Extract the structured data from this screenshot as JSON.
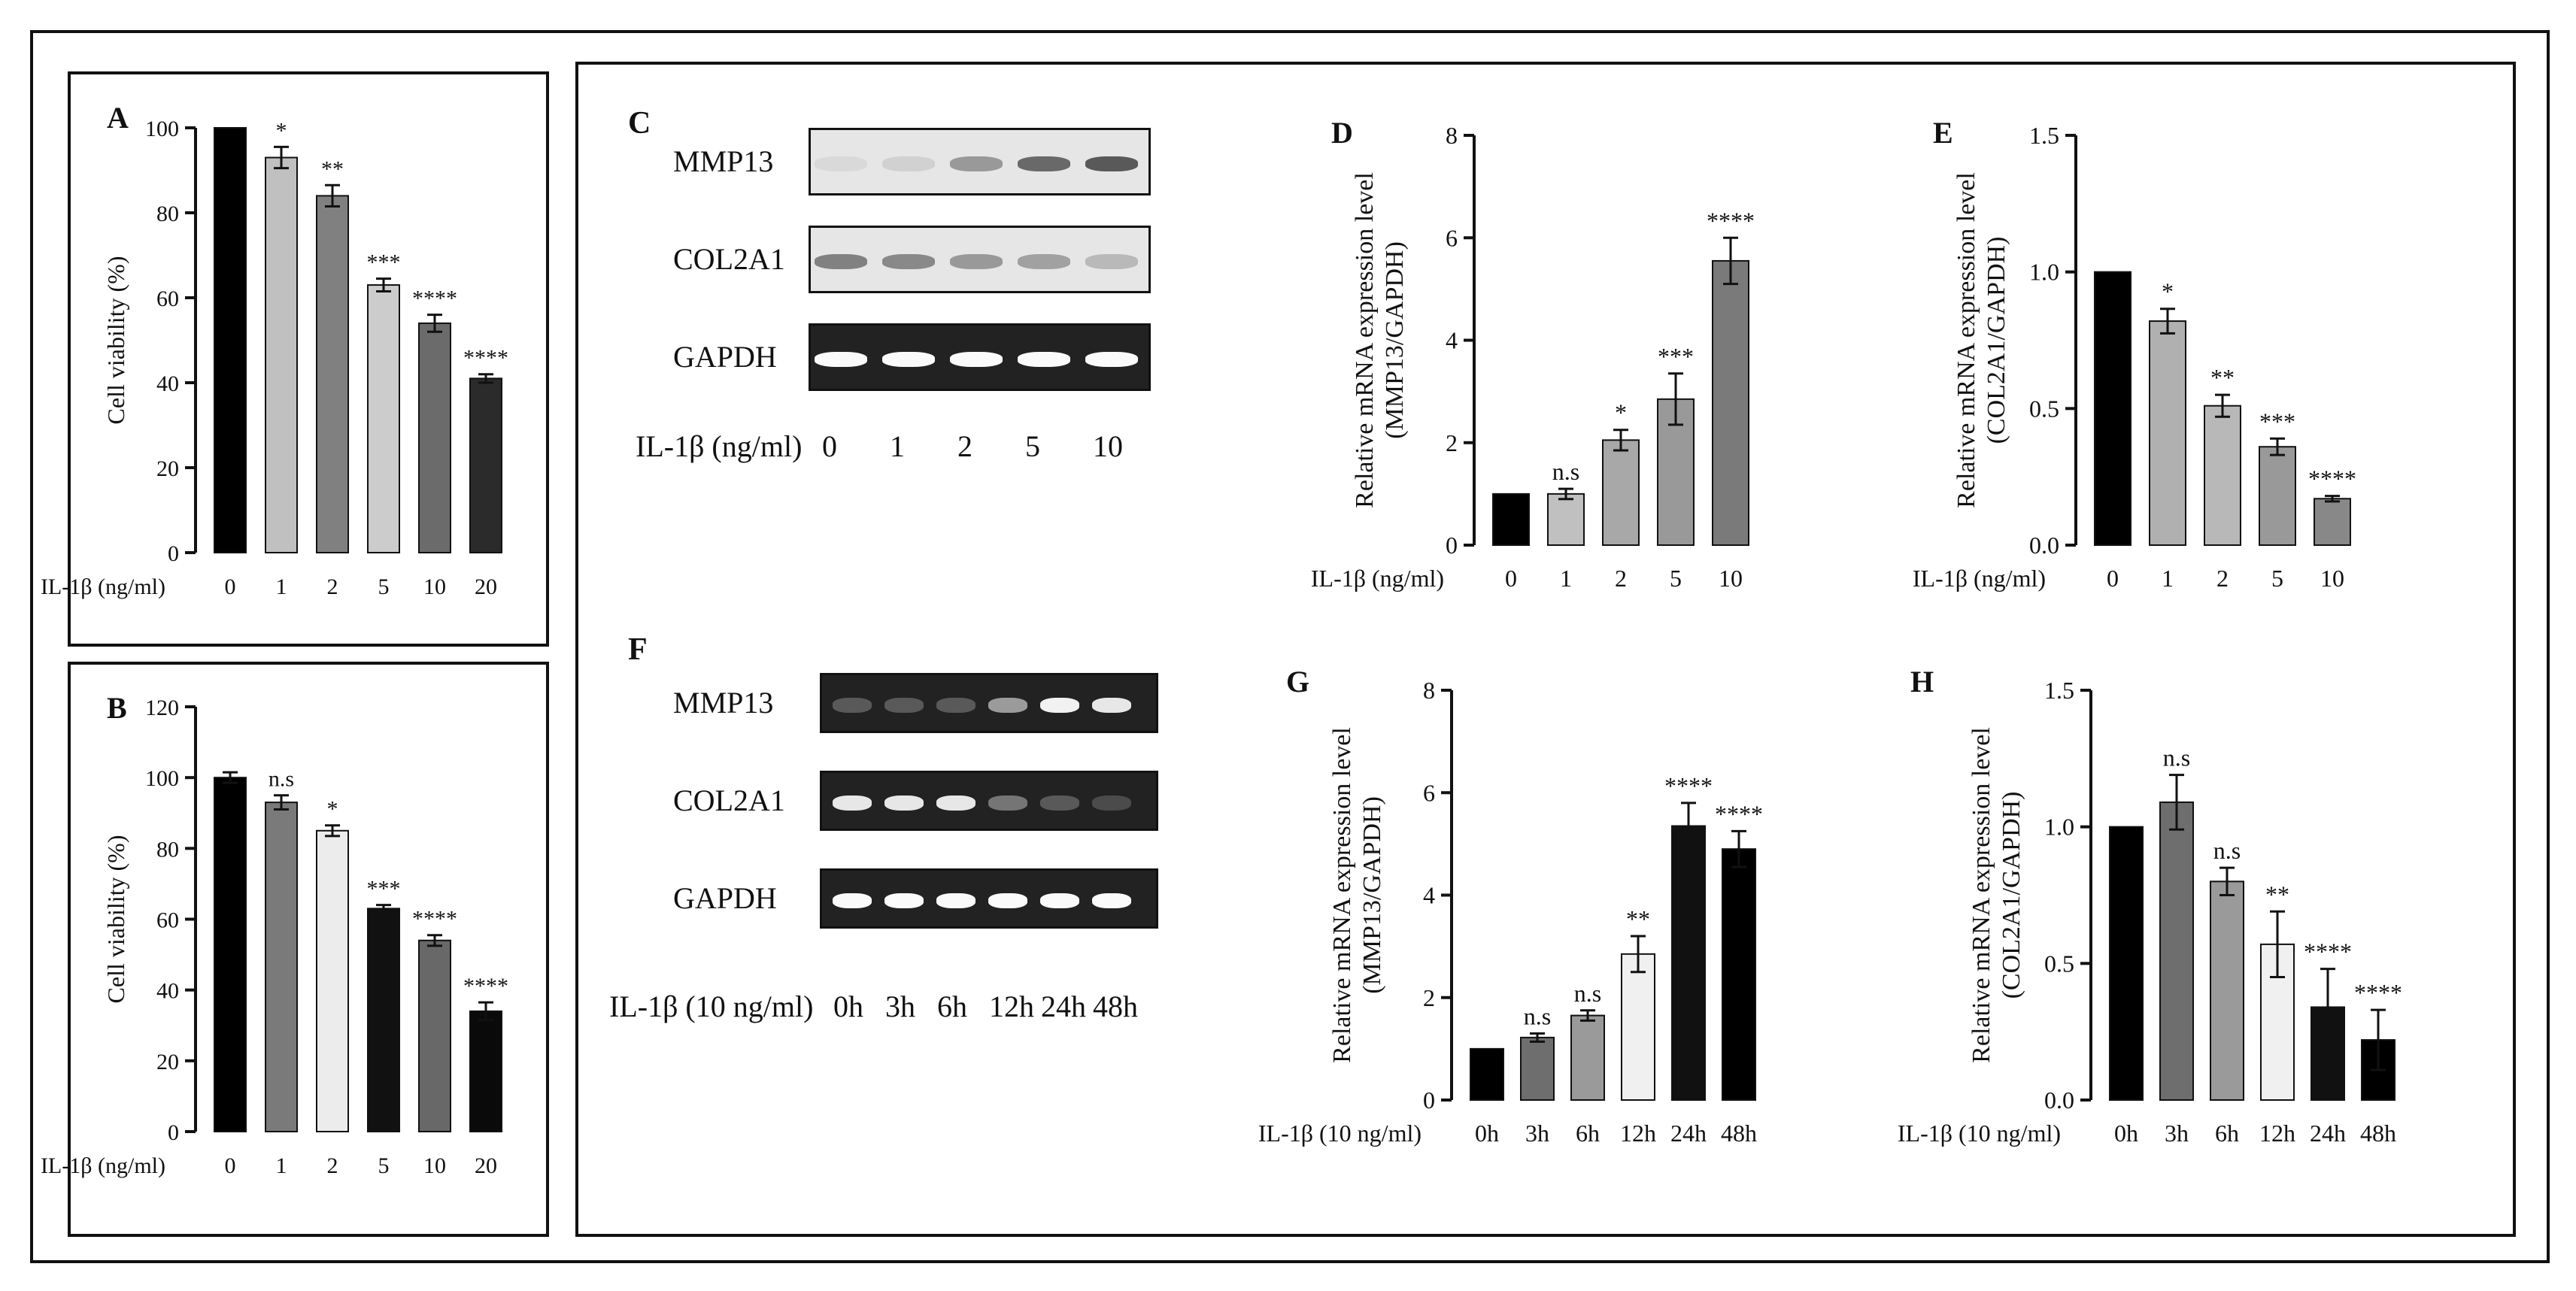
{
  "panels": {
    "A": "A",
    "B": "B",
    "C": "C",
    "D": "D",
    "E": "E",
    "F": "F",
    "G": "G",
    "H": "H"
  },
  "gel_c": {
    "rows": [
      "MMP13",
      "COL2A1",
      "GAPDH"
    ],
    "xlabel": "IL-1β (ng/ml)",
    "lanes": [
      "0",
      "1",
      "2",
      "5",
      "10"
    ],
    "intensity": {
      "MMP13": [
        0.05,
        0.1,
        0.45,
        0.75,
        0.85
      ],
      "COL2A1": [
        0.6,
        0.55,
        0.45,
        0.4,
        0.25
      ],
      "GAPDH": [
        1,
        1,
        1,
        1,
        1
      ]
    }
  },
  "gel_f": {
    "rows": [
      "MMP13",
      "COL2A1",
      "GAPDH"
    ],
    "xlabel": "IL-1β (10 ng/ml)",
    "lanes": [
      "0h",
      "3h",
      "6h",
      "12h",
      "24h",
      "48h"
    ],
    "intensity": {
      "MMP13": [
        0.15,
        0.15,
        0.15,
        0.5,
        0.95,
        0.9
      ],
      "COL2A1": [
        0.9,
        0.9,
        0.9,
        0.3,
        0.15,
        0.08
      ],
      "GAPDH": [
        1,
        1,
        1,
        1,
        1,
        1
      ]
    }
  },
  "chart_data": [
    {
      "id": "A",
      "type": "bar",
      "xlabel": "IL-1β (ng/ml)",
      "ylabel": "Cell viability (%)",
      "categories": [
        "0",
        "1",
        "2",
        "5",
        "10",
        "20"
      ],
      "values": [
        100,
        93,
        84,
        63,
        54,
        41
      ],
      "errors": [
        0,
        2.5,
        2.5,
        1.5,
        2,
        1
      ],
      "sig": [
        "",
        "*",
        "**",
        "***",
        "****",
        "****"
      ],
      "yticks": [
        0,
        20,
        40,
        60,
        80,
        100
      ],
      "ylim": [
        0,
        100
      ],
      "colors": [
        "#000000",
        "#c0c0c0",
        "#808080",
        "#cccccc",
        "#6b6b6b",
        "#2b2b2b"
      ]
    },
    {
      "id": "B",
      "type": "bar",
      "xlabel": "IL-1β (ng/ml)",
      "ylabel": "Cell viability (%)",
      "categories": [
        "0",
        "1",
        "2",
        "5",
        "10",
        "20"
      ],
      "values": [
        100,
        93,
        85,
        63,
        54,
        34
      ],
      "errors": [
        1.5,
        2,
        1.5,
        1,
        1.5,
        2.5
      ],
      "sig": [
        "",
        "n.s",
        "*",
        "***",
        "****",
        "****"
      ],
      "yticks": [
        0,
        20,
        40,
        60,
        80,
        100,
        120
      ],
      "ylim": [
        0,
        120
      ],
      "colors": [
        "#000000",
        "#7a7a7a",
        "#ececec",
        "#111111",
        "#686868",
        "#0a0a0a"
      ]
    },
    {
      "id": "D",
      "type": "bar",
      "xlabel": "IL-1β (ng/ml)",
      "ylabel": "Relative mRNA expression level\n(MMP13/GAPDH)",
      "categories": [
        "0",
        "1",
        "2",
        "5",
        "10"
      ],
      "values": [
        1,
        1,
        2.05,
        2.85,
        5.55
      ],
      "errors": [
        0,
        0.1,
        0.2,
        0.5,
        0.45
      ],
      "sig": [
        "",
        "n.s",
        "*",
        "***",
        "****"
      ],
      "yticks": [
        0,
        2,
        4,
        6,
        8
      ],
      "ylim": [
        0,
        8
      ],
      "colors": [
        "#000000",
        "#c0c0c0",
        "#a8a8a8",
        "#999999",
        "#7a7a7a"
      ]
    },
    {
      "id": "E",
      "type": "bar",
      "xlabel": "IL-1β (ng/ml)",
      "ylabel": "Relative mRNA expression level\n(COL2A1/GAPDH)",
      "categories": [
        "0",
        "1",
        "2",
        "5",
        "10"
      ],
      "values": [
        1,
        0.82,
        0.51,
        0.36,
        0.17
      ],
      "errors": [
        0,
        0.045,
        0.04,
        0.03,
        0.01
      ],
      "sig": [
        "",
        "*",
        "**",
        "***",
        "****"
      ],
      "yticks": [
        "0.0",
        "0.5",
        "1.0",
        "1.5"
      ],
      "ylim": [
        0,
        1.5
      ],
      "colors": [
        "#000000",
        "#b0b0b0",
        "#b8b8b8",
        "#999999",
        "#888888"
      ]
    },
    {
      "id": "G",
      "type": "bar",
      "xlabel": "IL-1β (10 ng/ml)",
      "ylabel": "Relative mRNA expression level\n(MMP13/GAPDH)",
      "categories": [
        "0h",
        "3h",
        "6h",
        "12h",
        "24h",
        "48h"
      ],
      "values": [
        1,
        1.22,
        1.65,
        2.85,
        5.35,
        4.9
      ],
      "errors": [
        0,
        0.08,
        0.1,
        0.35,
        0.45,
        0.35
      ],
      "sig": [
        "",
        "n.s",
        "n.s",
        "**",
        "****",
        "****"
      ],
      "yticks": [
        0,
        2,
        4,
        6,
        8
      ],
      "ylim": [
        0,
        8
      ],
      "colors": [
        "#000000",
        "#6e6e6e",
        "#9a9a9a",
        "#f0f0f0",
        "#111111",
        "#000000"
      ]
    },
    {
      "id": "H",
      "type": "bar",
      "xlabel": "IL-1β (10 ng/ml)",
      "ylabel": "Relative mRNA expression level\n(COL2A1/GAPDH)",
      "categories": [
        "0h",
        "3h",
        "6h",
        "12h",
        "24h",
        "48h"
      ],
      "values": [
        1,
        1.09,
        0.8,
        0.57,
        0.34,
        0.22
      ],
      "errors": [
        0,
        0.1,
        0.05,
        0.12,
        0.14,
        0.11
      ],
      "sig": [
        "",
        "n.s",
        "n.s",
        "**",
        "****",
        "****"
      ],
      "yticks": [
        "0.0",
        "0.5",
        "1.0",
        "1.5"
      ],
      "ylim": [
        0,
        1.5
      ],
      "colors": [
        "#000000",
        "#6e6e6e",
        "#9a9a9a",
        "#f0f0f0",
        "#111111",
        "#000000"
      ]
    }
  ]
}
